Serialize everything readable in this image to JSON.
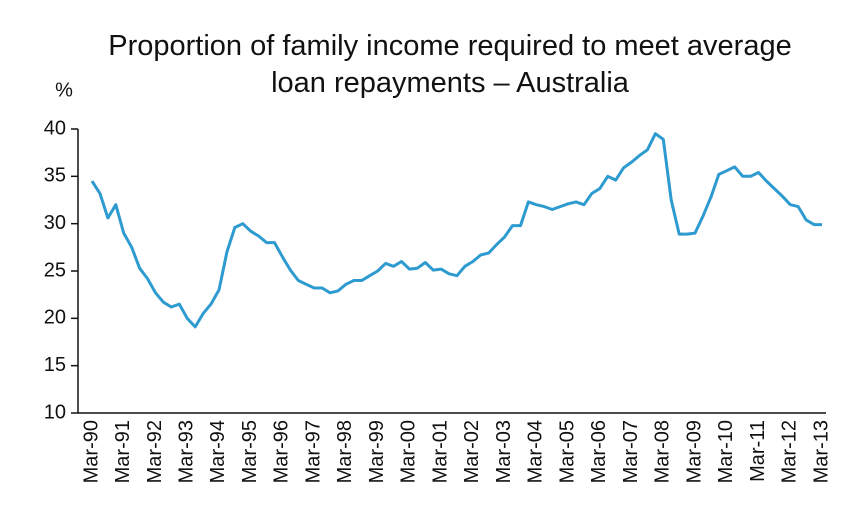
{
  "chart_data": {
    "type": "line",
    "title": "Proportion of family income required to meet average loan repayments – Australia",
    "y_label": "%",
    "categories": [
      "Mar-90",
      null,
      null,
      null,
      "Mar-91",
      null,
      null,
      null,
      "Mar-92",
      null,
      null,
      null,
      "Mar-93",
      null,
      null,
      null,
      "Mar-94",
      null,
      null,
      null,
      "Mar-95",
      null,
      null,
      null,
      "Mar-96",
      null,
      null,
      null,
      "Mar-97",
      null,
      null,
      null,
      "Mar-98",
      null,
      null,
      null,
      "Mar-99",
      null,
      null,
      null,
      "Mar-00",
      null,
      null,
      null,
      "Mar-01",
      null,
      null,
      null,
      "Mar-02",
      null,
      null,
      null,
      "Mar-03",
      null,
      null,
      null,
      "Mar-04",
      null,
      null,
      null,
      "Mar-05",
      null,
      null,
      null,
      "Mar-06",
      null,
      null,
      null,
      "Mar-07",
      null,
      null,
      null,
      "Mar-08",
      null,
      null,
      null,
      "Mar-09",
      null,
      null,
      null,
      "Mar-10",
      null,
      null,
      null,
      "Mar-11",
      null,
      null,
      null,
      "Mar-12",
      null,
      null,
      null,
      "Mar-13"
    ],
    "values": [
      34.5,
      33.2,
      30.6,
      32.0,
      29.0,
      27.5,
      25.3,
      24.2,
      22.7,
      21.7,
      21.2,
      21.5,
      20.0,
      19.1,
      20.5,
      21.5,
      23.0,
      27.0,
      29.6,
      30.0,
      29.2,
      28.7,
      28.0,
      28.0,
      26.5,
      25.1,
      24.0,
      23.6,
      23.2,
      23.2,
      22.7,
      22.9,
      23.6,
      24.0,
      24.0,
      24.5,
      25.0,
      25.8,
      25.5,
      26.0,
      25.2,
      25.3,
      25.9,
      25.1,
      25.2,
      24.7,
      24.5,
      25.5,
      26.0,
      26.7,
      26.9,
      27.8,
      28.6,
      29.8,
      29.8,
      32.3,
      32.0,
      31.8,
      31.5,
      31.8,
      32.1,
      32.3,
      32.0,
      33.2,
      33.7,
      35.0,
      34.6,
      35.9,
      36.5,
      37.2,
      37.8,
      39.5,
      38.9,
      32.5,
      28.9,
      28.9,
      29.0,
      30.8,
      32.8,
      35.2,
      35.6,
      36.0,
      35.0,
      35.0,
      35.4,
      34.5,
      33.7,
      32.9,
      32.0,
      31.8,
      30.4,
      29.9,
      29.9
    ],
    "color": "#2e9bd0",
    "ylim": [
      10,
      40
    ],
    "yticks": [
      10,
      15,
      20,
      25,
      30,
      35,
      40
    ]
  }
}
